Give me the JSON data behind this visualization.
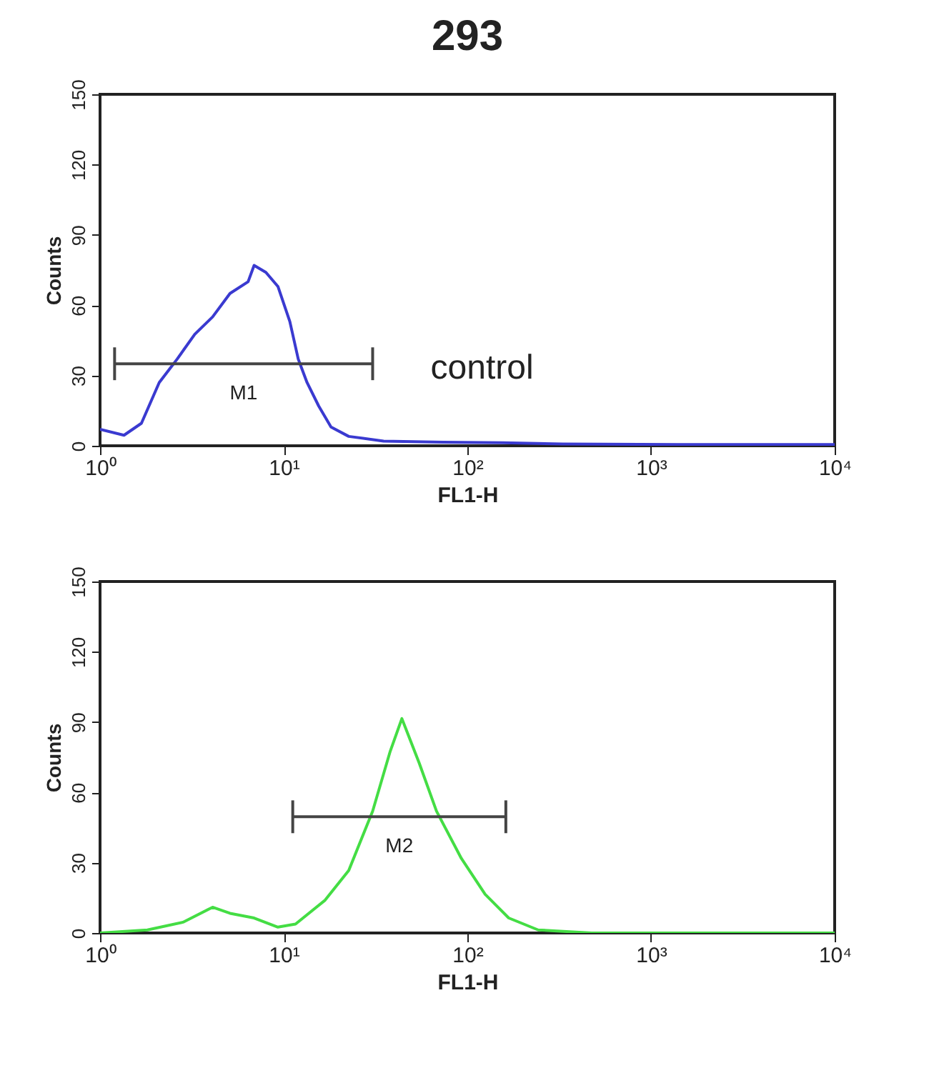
{
  "chart_data": [
    {
      "type": "line",
      "title": "293",
      "xlabel": "FL1-H",
      "ylabel": "Counts",
      "log": "x",
      "grid": false,
      "xlim": [
        1,
        10000
      ],
      "ylim": [
        0,
        150
      ],
      "xticks": [
        {
          "value": 1,
          "label": "10⁰"
        },
        {
          "value": 10,
          "label": "10¹"
        },
        {
          "value": 100,
          "label": "10²"
        },
        {
          "value": 1000,
          "label": "10³"
        },
        {
          "value": 10000,
          "label": "10⁴"
        }
      ],
      "yticks": [
        0,
        30,
        60,
        90,
        120,
        150
      ],
      "annotations": [
        "control"
      ],
      "series": [
        {
          "color": "#3a3ad0",
          "x": [
            1,
            1.35,
            1.68,
            2.1,
            2.63,
            3.28,
            4.1,
            5.1,
            6.4,
            6.9,
            8,
            9.3,
            10.8,
            12,
            13.4,
            15.5,
            18.1,
            22.6,
            35,
            74,
            156,
            330,
            1400,
            10000
          ],
          "values": [
            7,
            4.5,
            9.6,
            27,
            37,
            47.6,
            55,
            65,
            70,
            77,
            74,
            68,
            53,
            37,
            27,
            17,
            8,
            4,
            2,
            1.5,
            1.3,
            0.8,
            0.5,
            0.5
          ]
        },
        {
          "name": "M1",
          "color": "#444444",
          "x": [
            1.2,
            30.5
          ],
          "values": [
            35,
            35
          ],
          "errors": [
            7,
            7
          ]
        }
      ]
    },
    {
      "type": "line",
      "xlabel": "FL1-H",
      "ylabel": "Counts",
      "log": "x",
      "grid": false,
      "xlim": [
        1,
        10000
      ],
      "ylim": [
        0,
        150
      ],
      "xticks": [
        {
          "value": 1,
          "label": "10⁰"
        },
        {
          "value": 10,
          "label": "10¹"
        },
        {
          "value": 100,
          "label": "10²"
        },
        {
          "value": 1000,
          "label": "10³"
        },
        {
          "value": 10000,
          "label": "10⁴"
        }
      ],
      "yticks": [
        0,
        30,
        60,
        90,
        120,
        150
      ],
      "series": [
        {
          "color": "#44dd44",
          "x": [
            1,
            1.81,
            2.83,
            4.1,
            5.1,
            6.9,
            9.3,
            11.6,
            16.8,
            22.6,
            30.5,
            38,
            44,
            54.7,
            67.9,
            92.8,
            125,
            168,
            243,
            475,
            10000
          ],
          "values": [
            0,
            1.3,
            4.6,
            11,
            8.4,
            6.4,
            2.5,
            3.8,
            14,
            26.7,
            52,
            77.5,
            91.5,
            72.5,
            52,
            31.8,
            16.5,
            6.4,
            1.3,
            0,
            0
          ]
        },
        {
          "name": "M2",
          "color": "#444444",
          "x": [
            11.2,
            162
          ],
          "values": [
            49.6,
            49.6
          ],
          "errors": [
            7,
            7
          ]
        }
      ]
    }
  ]
}
